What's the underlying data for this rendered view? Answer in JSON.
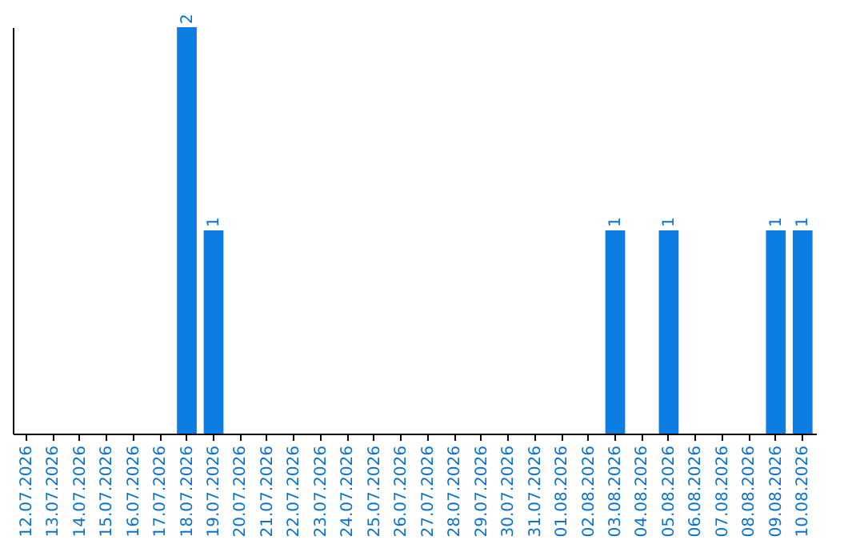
{
  "chart_data": {
    "type": "bar",
    "categories": [
      "12.07.2026",
      "13.07.2026",
      "14.07.2026",
      "15.07.2026",
      "16.07.2026",
      "17.07.2026",
      "18.07.2026",
      "19.07.2026",
      "20.07.2026",
      "21.07.2026",
      "22.07.2026",
      "23.07.2026",
      "24.07.2026",
      "25.07.2026",
      "26.07.2026",
      "27.07.2026",
      "28.07.2026",
      "29.07.2026",
      "30.07.2026",
      "31.07.2026",
      "01.08.2026",
      "02.08.2026",
      "03.08.2026",
      "04.08.2026",
      "05.08.2026",
      "06.08.2026",
      "07.08.2026",
      "08.08.2026",
      "09.08.2026",
      "10.08.2026"
    ],
    "values": [
      0,
      0,
      0,
      0,
      0,
      0,
      2,
      1,
      0,
      0,
      0,
      0,
      0,
      0,
      0,
      0,
      0,
      0,
      0,
      0,
      0,
      0,
      1,
      0,
      1,
      0,
      0,
      0,
      1,
      1
    ],
    "value_labels": [
      null,
      null,
      null,
      null,
      null,
      null,
      "2",
      "1",
      null,
      null,
      null,
      null,
      null,
      null,
      null,
      null,
      null,
      null,
      null,
      null,
      null,
      null,
      "1",
      null,
      "1",
      null,
      null,
      null,
      "1",
      "1"
    ],
    "color": "#0b7de3",
    "tick_labels": "x",
    "grid": false
  }
}
